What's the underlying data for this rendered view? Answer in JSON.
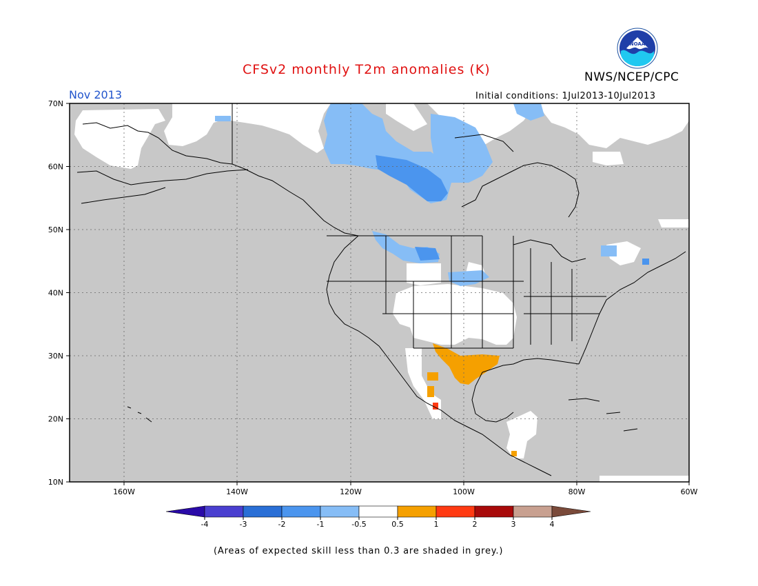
{
  "title": "CFSv2 monthly T2m anomalies (K)",
  "month": "Nov 2013",
  "initial_conditions": "Initial conditions: 1Jul2013-10Jul2013",
  "agency": "NWS/NCEP/CPC",
  "logo_text": "NOAA",
  "footnote": "(Areas of expected skill less than 0.3 are shaded in grey.)",
  "lat_labels": [
    "70N",
    "60N",
    "50N",
    "40N",
    "30N",
    "20N",
    "10N"
  ],
  "lon_labels": [
    "160W",
    "140W",
    "120W",
    "100W",
    "80W",
    "60W"
  ],
  "colorbar": {
    "ticks": [
      "-4",
      "-3",
      "-2",
      "-1",
      "-0.5",
      "0.5",
      "1",
      "2",
      "3",
      "4"
    ],
    "colors": [
      "#2a0aa8",
      "#4a3fd0",
      "#2a6fd6",
      "#4b95ee",
      "#86bdf6",
      "#ffffff",
      "#f5a000",
      "#ff3a12",
      "#a80a0a",
      "#c8a090",
      "#7a4a3a"
    ]
  },
  "colors": {
    "skill_grey": "#c8c8c8",
    "neutral": "#ffffff",
    "cool_light": "#86bdf6",
    "cool_mid": "#4b95ee",
    "warm_orange": "#f5a000",
    "warm_red": "#ff3a12",
    "title_red": "#e01010",
    "month_blue": "#2255cc"
  }
}
